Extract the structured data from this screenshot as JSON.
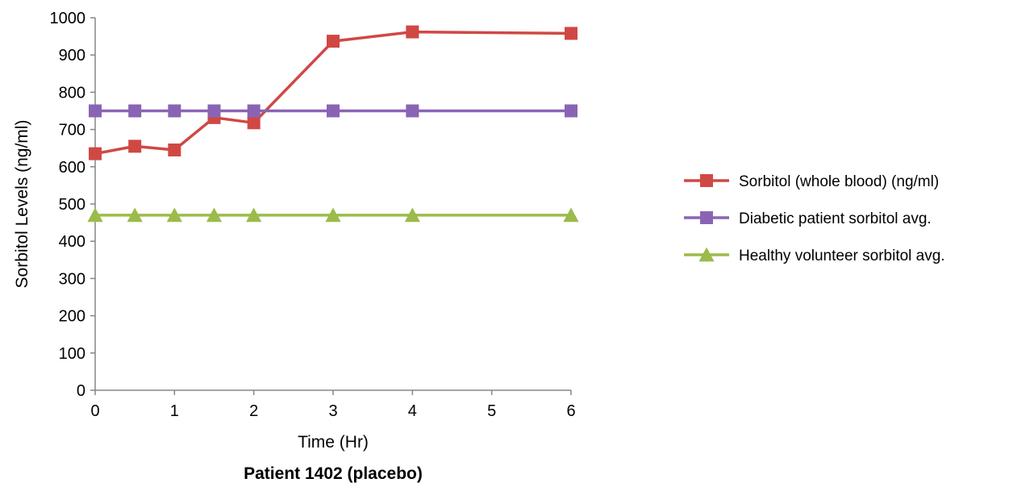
{
  "chart_data": {
    "type": "line",
    "title": "Patient 1402 (placebo)",
    "xlabel": "Time (Hr)",
    "ylabel": "Sorbitol Levels (ng/ml)",
    "xlim": [
      0,
      6
    ],
    "ylim": [
      0,
      1000
    ],
    "x_ticks": [
      "0",
      "1",
      "2",
      "3",
      "4",
      "5",
      "6"
    ],
    "y_ticks": [
      "0",
      "100",
      "200",
      "300",
      "400",
      "500",
      "600",
      "700",
      "800",
      "900",
      "1000"
    ],
    "grid": false,
    "legend_position": "right",
    "series": [
      {
        "name": "Sorbitol (whole blood) (ng/ml)",
        "color": "#d04844",
        "marker": "square",
        "x": [
          0,
          0.5,
          1,
          1.5,
          2,
          3,
          4,
          6
        ],
        "y": [
          635,
          655,
          645,
          732,
          718,
          937,
          962,
          958
        ]
      },
      {
        "name": "Diabetic patient sorbitol avg.",
        "color": "#8a64b4",
        "marker": "square",
        "x": [
          0,
          0.5,
          1,
          1.5,
          2,
          3,
          4,
          6
        ],
        "y": [
          750,
          750,
          750,
          750,
          750,
          750,
          750,
          750
        ]
      },
      {
        "name": "Healthy volunteer sorbitol avg.",
        "color": "#9bbb4a",
        "marker": "triangle",
        "x": [
          0,
          0.5,
          1,
          1.5,
          2,
          3,
          4,
          6
        ],
        "y": [
          470,
          470,
          470,
          470,
          470,
          470,
          470,
          470
        ]
      }
    ]
  }
}
